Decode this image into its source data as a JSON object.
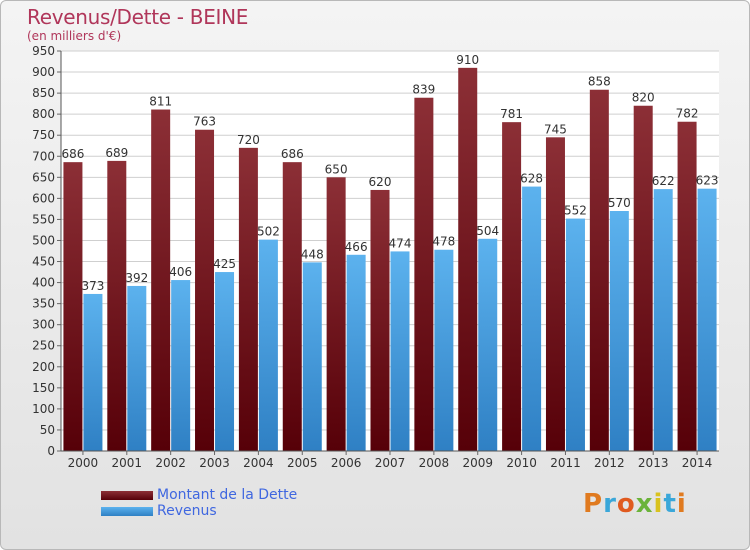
{
  "header": {
    "title": "Revenus/Dette - BEINE",
    "subtitle": "(en milliers d'€)"
  },
  "logo": {
    "text": "Proxiti"
  },
  "colors": {
    "dette": "#7a1a22",
    "revenus": "#4aa3e3",
    "title": "#b0365a",
    "legend_text": "#3f67e0"
  },
  "chart_data": {
    "type": "bar",
    "title": "Revenus/Dette - BEINE",
    "subtitle": "(en milliers d'€)",
    "categories": [
      "2000",
      "2001",
      "2002",
      "2003",
      "2004",
      "2005",
      "2006",
      "2007",
      "2008",
      "2009",
      "2010",
      "2011",
      "2012",
      "2013",
      "2014"
    ],
    "series": [
      {
        "name": "Montant de la Dette",
        "values": [
          686,
          689,
          811,
          763,
          720,
          686,
          650,
          620,
          839,
          910,
          781,
          745,
          858,
          820,
          782
        ]
      },
      {
        "name": "Revenus",
        "values": [
          373,
          392,
          406,
          425,
          502,
          448,
          466,
          474,
          478,
          504,
          628,
          552,
          570,
          622,
          623
        ]
      }
    ],
    "ylim": [
      0,
      950
    ],
    "yticks": [
      0,
      50,
      100,
      150,
      200,
      250,
      300,
      350,
      400,
      450,
      500,
      550,
      600,
      650,
      700,
      750,
      800,
      850,
      900,
      950
    ],
    "grid": true,
    "legend": "bottom-left"
  }
}
